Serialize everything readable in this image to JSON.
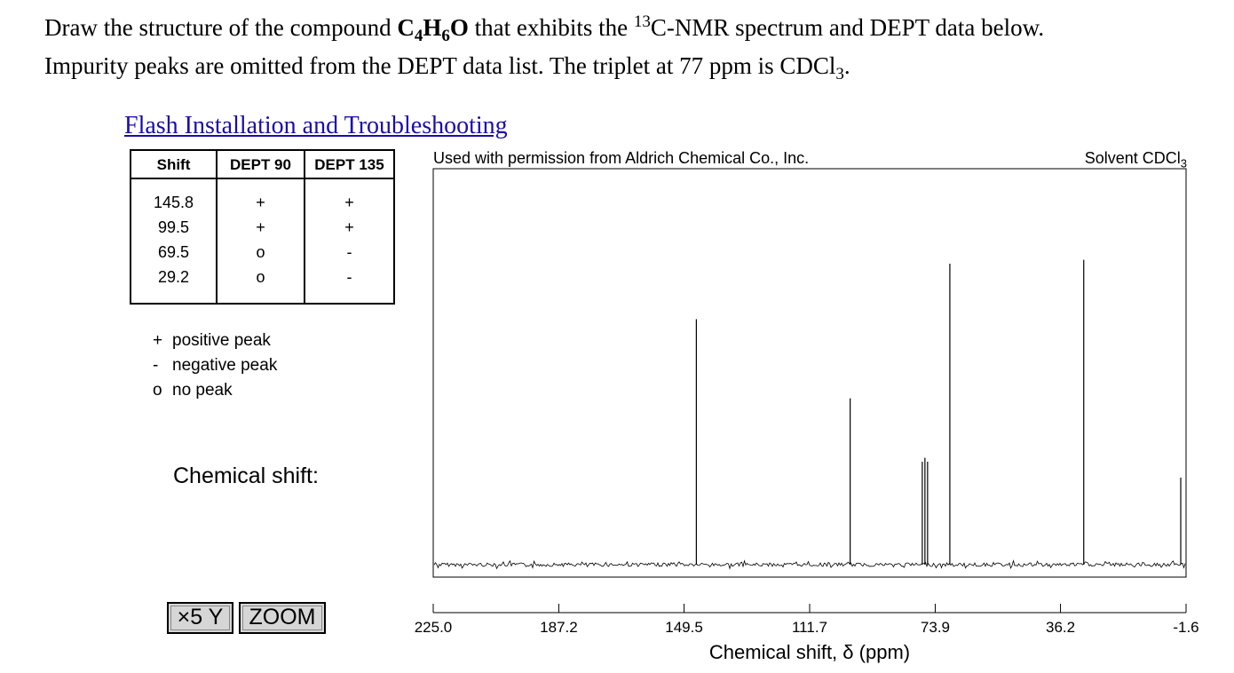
{
  "question": {
    "line1_before": "Draw the structure of the compound ",
    "formula": {
      "c": "C",
      "c_sub": "4",
      "h": "H",
      "h_sub": "6",
      "o": "O"
    },
    "line1_after_formula": " that exhibits the ",
    "isotope_sup": "13",
    "line1_end": "C-NMR spectrum and DEPT data below.",
    "line2_start": "Impurity peaks are omitted from the DEPT data list. The triplet at 77 ppm is CDCl",
    "line2_sub": "3",
    "line2_end": "."
  },
  "link": {
    "label": "Flash Installation and Troubleshooting"
  },
  "dept_table": {
    "headers": {
      "shift": "Shift",
      "dept90": "DEPT 90",
      "dept135": "DEPT 135"
    },
    "rows": [
      {
        "shift": "145.8",
        "dept90": "+",
        "dept135": "+"
      },
      {
        "shift": "99.5",
        "dept90": "+",
        "dept135": "+"
      },
      {
        "shift": "69.5",
        "dept90": "o",
        "dept135": "-"
      },
      {
        "shift": "29.2",
        "dept90": "o",
        "dept135": "-"
      }
    ]
  },
  "legend": [
    {
      "symbol": "+",
      "text": "positive peak"
    },
    {
      "symbol": "-",
      "text": "negative peak"
    },
    {
      "symbol": "o",
      "text": "no peak"
    }
  ],
  "chemical_shift_label": "Chemical shift:",
  "buttons": {
    "x5y": "×5 Y",
    "zoom": "ZOOM"
  },
  "spectrum": {
    "caption_left": "Used with permission from Aldrich Chemical Co., Inc.",
    "caption_right_prefix": "Solvent CDCl",
    "caption_right_sub": "3"
  },
  "chart_data": {
    "type": "line",
    "title": "",
    "xlabel": "Chemical shift, δ (ppm)",
    "ylabel": "",
    "xlim": [
      225.0,
      -1.6
    ],
    "x_reversed": true,
    "xticks": [
      "225.0",
      "187.2",
      "149.5",
      "111.7",
      "73.9",
      "36.2",
      "-1.6"
    ],
    "grid": false,
    "peaks": [
      {
        "x": 145.8,
        "height": 0.62
      },
      {
        "x": 99.5,
        "height": 0.42
      },
      {
        "x": 77.8,
        "height": 0.26
      },
      {
        "x": 77.0,
        "height": 0.27
      },
      {
        "x": 76.2,
        "height": 0.26
      },
      {
        "x": 69.5,
        "height": 0.76
      },
      {
        "x": 29.2,
        "height": 0.77
      },
      {
        "x": 0.0,
        "height": 0.22
      }
    ],
    "baseline_noise": true
  }
}
